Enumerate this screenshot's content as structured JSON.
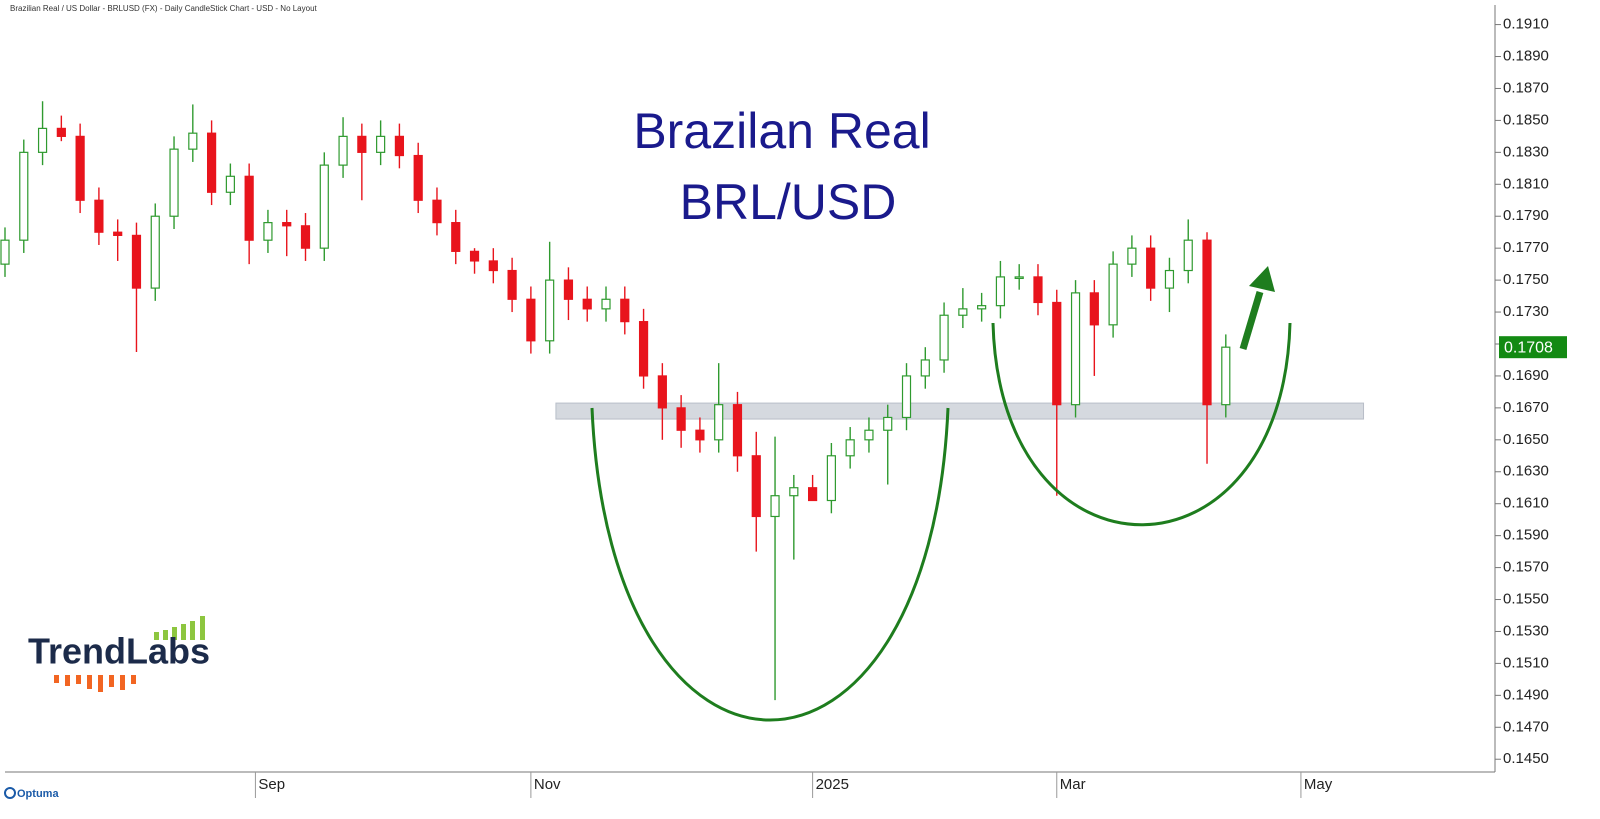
{
  "chart_data": {
    "type": "candlestick",
    "header": "Brazilian Real / US Dollar - BRLUSD (FX) - Daily CandleStick Chart - USD - No Layout",
    "annotation": [
      "Brazilan Real",
      "BRL/USD"
    ],
    "logo": "TrendLabs",
    "platform": "Optuma",
    "x": [
      0,
      3,
      6,
      9,
      12,
      15,
      18,
      21,
      24,
      27,
      30,
      33,
      36,
      39,
      42,
      45,
      48,
      51,
      54,
      57,
      60,
      63,
      66,
      69,
      72,
      75,
      78,
      81,
      84,
      87,
      90,
      93,
      96,
      99,
      102,
      105,
      108,
      111,
      114,
      117,
      120,
      123,
      126,
      129,
      132,
      135,
      138,
      141,
      144,
      147,
      150,
      153,
      156,
      159,
      162,
      165,
      168,
      171,
      174,
      177,
      180,
      183,
      186,
      189,
      192,
      195
    ],
    "open": [
      0.176,
      0.1775,
      0.183,
      0.1845,
      0.184,
      0.18,
      0.178,
      0.1778,
      0.1745,
      0.179,
      0.1832,
      0.1842,
      0.1805,
      0.1815,
      0.1775,
      0.1786,
      0.1784,
      0.177,
      0.1822,
      0.184,
      0.183,
      0.184,
      0.1828,
      0.18,
      0.1786,
      0.1768,
      0.1762,
      0.1756,
      0.1738,
      0.1712,
      0.175,
      0.1738,
      0.1732,
      0.1738,
      0.1724,
      0.169,
      0.167,
      0.1656,
      0.165,
      0.1672,
      0.164,
      0.1602,
      0.1615,
      0.162,
      0.1612,
      0.164,
      0.165,
      0.1656,
      0.1664,
      0.169,
      0.17,
      0.1728,
      0.1732,
      0.1734,
      0.1752,
      0.1752,
      0.1736,
      0.1672,
      0.1742,
      0.1722,
      0.176,
      0.177,
      0.1745,
      0.1756,
      0.1775,
      0.1672
    ],
    "high": [
      0.1783,
      0.1838,
      0.1862,
      0.1853,
      0.1848,
      0.1808,
      0.1788,
      0.1786,
      0.1798,
      0.184,
      0.186,
      0.185,
      0.1823,
      0.1823,
      0.1794,
      0.1794,
      0.1792,
      0.183,
      0.1852,
      0.1848,
      0.185,
      0.1848,
      0.1836,
      0.1808,
      0.1794,
      0.177,
      0.177,
      0.1764,
      0.1746,
      0.1774,
      0.1758,
      0.1746,
      0.1746,
      0.1746,
      0.1732,
      0.1698,
      0.1678,
      0.1664,
      0.1698,
      0.168,
      0.1655,
      0.1652,
      0.1628,
      0.1628,
      0.1648,
      0.1658,
      0.1664,
      0.1672,
      0.1698,
      0.1708,
      0.1736,
      0.1745,
      0.1742,
      0.1762,
      0.176,
      0.176,
      0.1744,
      0.175,
      0.175,
      0.1768,
      0.1778,
      0.1778,
      0.1764,
      0.1788,
      0.178,
      0.1716
    ],
    "low": [
      0.1752,
      0.1767,
      0.1822,
      0.1837,
      0.1792,
      0.1772,
      0.1762,
      0.1705,
      0.1737,
      0.1782,
      0.1824,
      0.1797,
      0.1797,
      0.176,
      0.1767,
      0.1765,
      0.1762,
      0.1762,
      0.1814,
      0.18,
      0.1822,
      0.182,
      0.1792,
      0.1778,
      0.176,
      0.1754,
      0.1748,
      0.173,
      0.1704,
      0.1704,
      0.1725,
      0.1724,
      0.1724,
      0.1716,
      0.1682,
      0.165,
      0.1645,
      0.1642,
      0.1642,
      0.163,
      0.158,
      0.1487,
      0.1575,
      0.1612,
      0.1604,
      0.1632,
      0.1642,
      0.1622,
      0.1656,
      0.1682,
      0.1692,
      0.172,
      0.1724,
      0.1726,
      0.1744,
      0.1728,
      0.1615,
      0.1664,
      0.169,
      0.1714,
      0.1752,
      0.1737,
      0.173,
      0.1748,
      0.1635,
      0.1664
    ],
    "close": [
      0.1775,
      0.183,
      0.1845,
      0.184,
      0.18,
      0.178,
      0.1778,
      0.1745,
      0.179,
      0.1832,
      0.1842,
      0.1805,
      0.1815,
      0.1775,
      0.1786,
      0.1784,
      0.177,
      0.1822,
      0.184,
      0.183,
      0.184,
      0.1828,
      0.18,
      0.1786,
      0.1768,
      0.1762,
      0.1756,
      0.1738,
      0.1712,
      0.175,
      0.1738,
      0.1732,
      0.1738,
      0.1724,
      0.169,
      0.167,
      0.1656,
      0.165,
      0.1672,
      0.164,
      0.1602,
      0.1615,
      0.162,
      0.1612,
      0.164,
      0.165,
      0.1656,
      0.1664,
      0.169,
      0.17,
      0.1728,
      0.1732,
      0.1734,
      0.1752,
      0.1752,
      0.1736,
      0.1672,
      0.1742,
      0.1722,
      0.176,
      0.177,
      0.1745,
      0.1756,
      0.1775,
      0.1672,
      0.1708
    ],
    "up_color": "#2f9a2f",
    "down_color": "#e8141c",
    "xlim": [
      0,
      238
    ],
    "xticks": [
      {
        "value": 40,
        "label": "Sep"
      },
      {
        "value": 84,
        "label": "Nov"
      },
      {
        "value": 129,
        "label": "2025"
      },
      {
        "value": 168,
        "label": "Mar"
      },
      {
        "value": 207,
        "label": "May"
      }
    ],
    "ylim": [
      0.1442,
      0.1916
    ],
    "yticks": [
      {
        "value": 0.145,
        "label": "0.1450"
      },
      {
        "value": 0.147,
        "label": "0.1470"
      },
      {
        "value": 0.149,
        "label": "0.1490"
      },
      {
        "value": 0.151,
        "label": "0.1510"
      },
      {
        "value": 0.153,
        "label": "0.1530"
      },
      {
        "value": 0.155,
        "label": "0.1550"
      },
      {
        "value": 0.157,
        "label": "0.1570"
      },
      {
        "value": 0.159,
        "label": "0.1590"
      },
      {
        "value": 0.161,
        "label": "0.1610"
      },
      {
        "value": 0.163,
        "label": "0.1630"
      },
      {
        "value": 0.165,
        "label": "0.1650"
      },
      {
        "value": 0.167,
        "label": "0.1670"
      },
      {
        "value": 0.169,
        "label": "0.1690"
      },
      {
        "value": 0.171,
        "label": "0.1710"
      },
      {
        "value": 0.173,
        "label": "0.1730"
      },
      {
        "value": 0.175,
        "label": "0.1750"
      },
      {
        "value": 0.177,
        "label": "0.1770"
      },
      {
        "value": 0.179,
        "label": "0.1790"
      },
      {
        "value": 0.181,
        "label": "0.1810"
      },
      {
        "value": 0.183,
        "label": "0.1830"
      },
      {
        "value": 0.185,
        "label": "0.1850"
      },
      {
        "value": 0.187,
        "label": "0.1870"
      },
      {
        "value": 0.189,
        "label": "0.1890"
      },
      {
        "value": 0.191,
        "label": "0.1910"
      }
    ],
    "support_zone": [
      0.1663,
      0.1673
    ],
    "support_zone_xlim": [
      88,
      217
    ],
    "last_price": {
      "value": 0.1708,
      "label": "0.1708"
    },
    "last_price_color": "#138a13"
  }
}
